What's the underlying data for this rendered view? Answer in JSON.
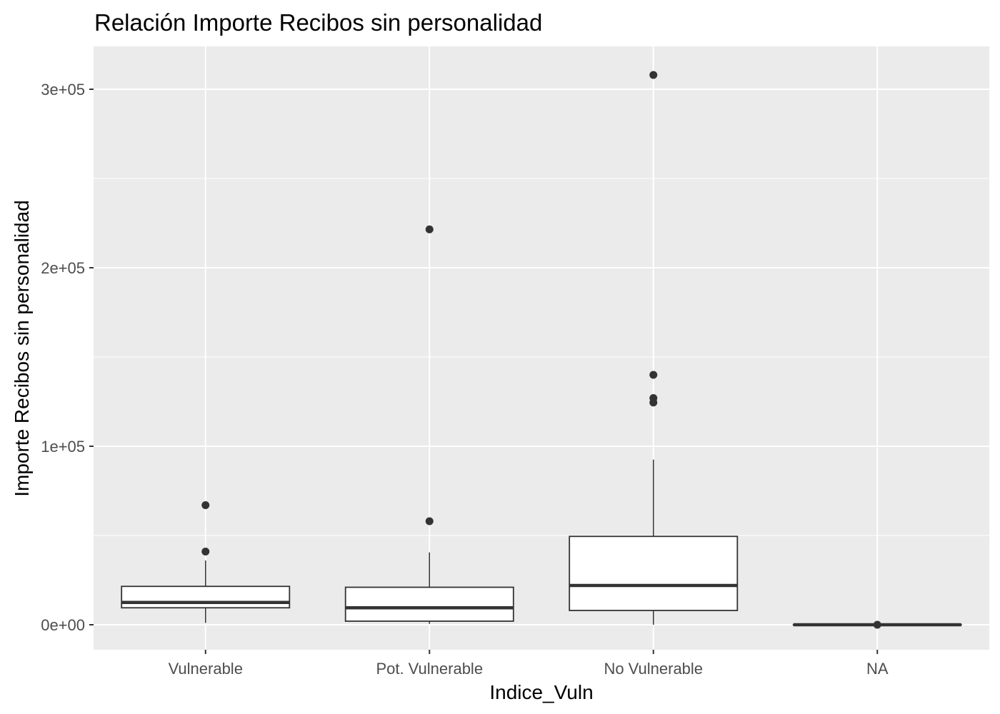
{
  "chart_data": {
    "type": "boxplot",
    "title": "Relación  Importe Recibos sin personalidad",
    "xlabel": "Indice_Vuln",
    "ylabel": "Importe Recibos sin personalidad",
    "categories": [
      "Vulnerable",
      "Pot. Vulnerable",
      "No Vulnerable",
      "NA"
    ],
    "y_ticks": [
      0,
      100000,
      200000,
      300000
    ],
    "y_tick_labels": [
      "0e+00",
      "1e+05",
      "2e+05",
      "3e+05"
    ],
    "ylim": [
      -14000,
      324000
    ],
    "grid": true,
    "boxes": [
      {
        "category": "Vulnerable",
        "whisker_low": 1000,
        "q1": 9500,
        "median": 12500,
        "q3": 21500,
        "whisker_high": 36000,
        "outliers": [
          41000,
          67000
        ]
      },
      {
        "category": "Pot. Vulnerable",
        "whisker_low": 500,
        "q1": 2000,
        "median": 9500,
        "q3": 21000,
        "whisker_high": 40500,
        "outliers": [
          58000,
          221500
        ]
      },
      {
        "category": "No Vulnerable",
        "whisker_low": 0,
        "q1": 8000,
        "median": 22000,
        "q3": 49500,
        "whisker_high": 92500,
        "outliers": [
          124500,
          127000,
          140000,
          308000
        ]
      },
      {
        "category": "NA",
        "whisker_low": 0,
        "q1": 0,
        "median": 0,
        "q3": 0,
        "whisker_high": 0,
        "outliers": [
          0
        ]
      }
    ],
    "colors": {
      "panel": "#ebebeb",
      "grid": "#ffffff",
      "box_fill": "#ffffff",
      "box_stroke": "#333333",
      "point": "#333333",
      "tick_text": "#4d4d4d"
    }
  }
}
